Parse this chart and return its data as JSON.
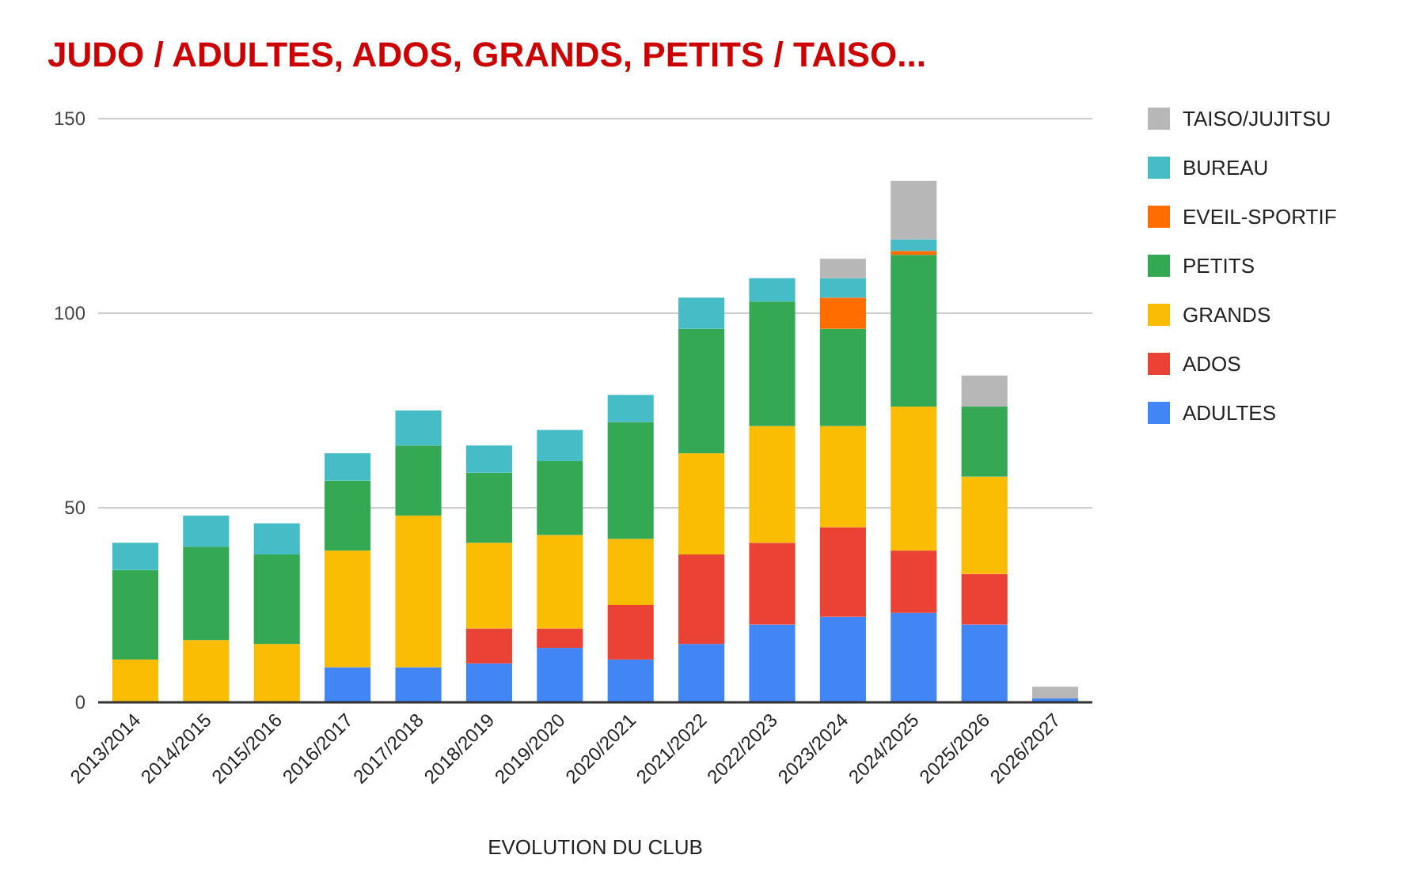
{
  "chart_data": {
    "type": "bar",
    "title": "JUDO / ADULTES, ADOS, GRANDS, PETITS / TAISO...",
    "xlabel": "EVOLUTION DU CLUB",
    "categories": [
      "2013/2014",
      "2014/2015",
      "2015/2016",
      "2016/2017",
      "2017/2018",
      "2018/2019",
      "2019/2020",
      "2020/2021",
      "2021/2022",
      "2022/2023",
      "2023/2024",
      "2024/2025",
      "2025/2026",
      "2026/2027"
    ],
    "stacked": true,
    "ylim": [
      0,
      150
    ],
    "yticks": [
      0,
      50,
      100,
      150
    ],
    "grid": "y",
    "legend": "right",
    "series": [
      {
        "name": "ADULTES",
        "color": "#4285f4",
        "values": [
          0,
          0,
          0,
          9,
          9,
          10,
          14,
          11,
          15,
          20,
          22,
          23,
          20,
          1
        ]
      },
      {
        "name": "ADOS",
        "color": "#ea4335",
        "values": [
          0,
          0,
          0,
          0,
          0,
          9,
          5,
          14,
          23,
          21,
          23,
          16,
          13,
          0
        ]
      },
      {
        "name": "GRANDS",
        "color": "#fbbc04",
        "values": [
          11,
          16,
          15,
          30,
          39,
          22,
          24,
          17,
          26,
          30,
          26,
          37,
          25,
          0
        ]
      },
      {
        "name": "PETITS",
        "color": "#34a853",
        "values": [
          23,
          24,
          23,
          18,
          18,
          18,
          19,
          30,
          32,
          32,
          25,
          39,
          18,
          0
        ]
      },
      {
        "name": "EVEIL-SPORTIF",
        "color": "#ff6d01",
        "values": [
          0,
          0,
          0,
          0,
          0,
          0,
          0,
          0,
          0,
          0,
          8,
          1,
          0,
          0
        ]
      },
      {
        "name": "BUREAU",
        "color": "#46bdc6",
        "values": [
          7,
          8,
          8,
          7,
          9,
          7,
          8,
          7,
          8,
          6,
          5,
          3,
          0,
          0
        ]
      },
      {
        "name": "TAISO/JUJITSU",
        "color": "#b7b7b7",
        "values": [
          0,
          0,
          0,
          0,
          0,
          0,
          0,
          0,
          0,
          0,
          5,
          15,
          8,
          3
        ]
      }
    ]
  }
}
